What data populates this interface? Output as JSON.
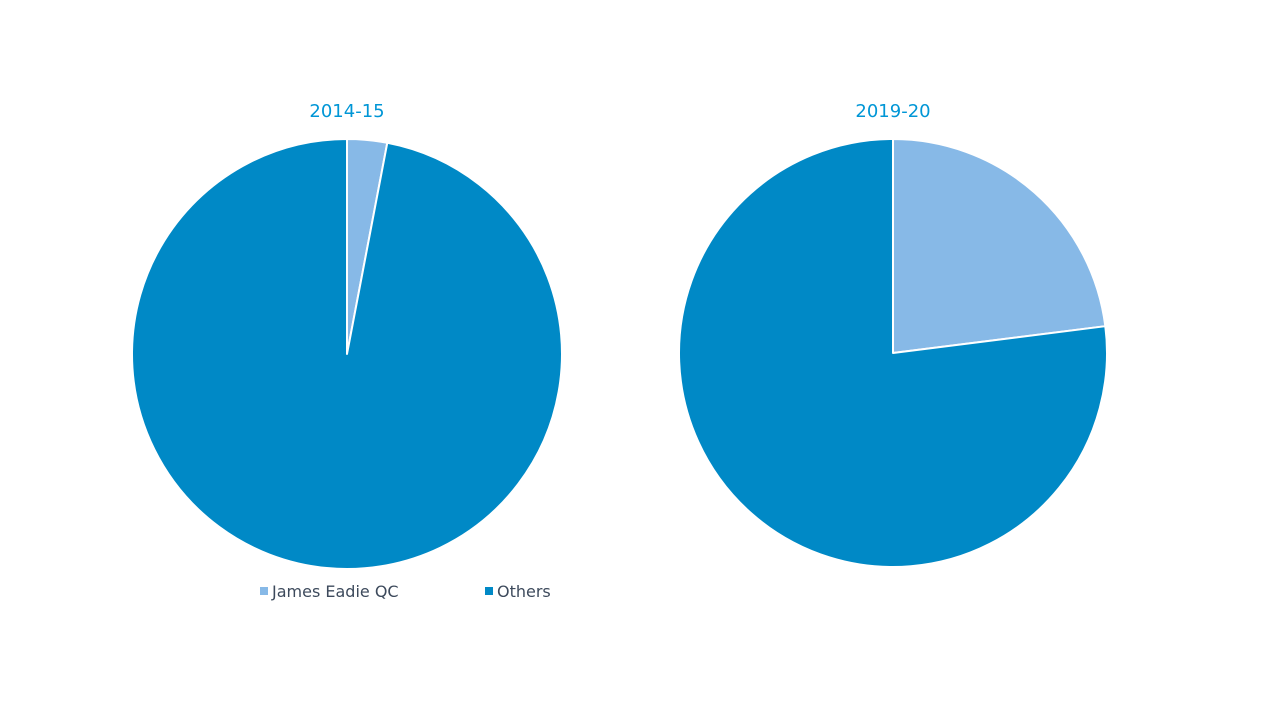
{
  "chart_data": [
    {
      "type": "pie",
      "title": "2014-15",
      "categories": [
        "James Eadie QC",
        "Others"
      ],
      "values": [
        3,
        97
      ],
      "colors": [
        "#87B9E7",
        "#0089C6"
      ]
    },
    {
      "type": "pie",
      "title": "2019-20",
      "categories": [
        "James Eadie QC",
        "Others"
      ],
      "values": [
        23,
        77
      ],
      "colors": [
        "#87B9E7",
        "#0089C6"
      ]
    }
  ],
  "legend": {
    "placement": "bottom-left",
    "items": [
      {
        "label": "James Eadie QC",
        "color": "#87B9E7"
      },
      {
        "label": "Others",
        "color": "#0089C6"
      }
    ]
  },
  "colors": {
    "title": "#0096D6",
    "legend_text": "#3D4A5C",
    "slice_border": "#ffffff"
  }
}
